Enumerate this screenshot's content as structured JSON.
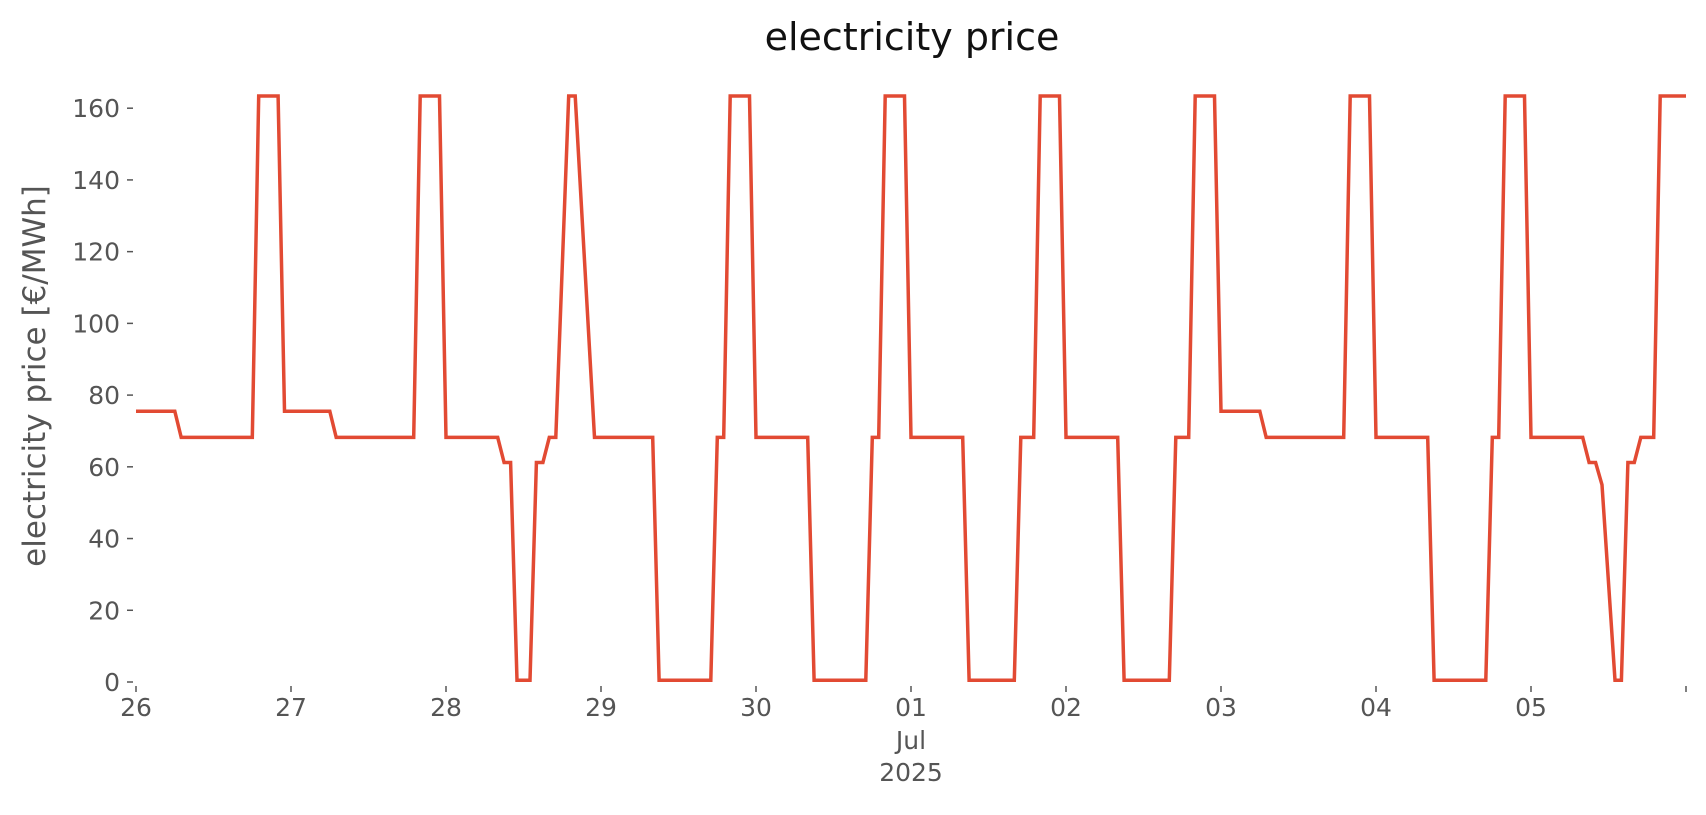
{
  "chart_data": {
    "type": "line",
    "title": "electricity price",
    "xlabel": "",
    "ylabel": "electricity price [€/MWh]",
    "grid": false,
    "legend": "none",
    "line_color": "#E24A33",
    "x_start": "2025-06-26T00:00",
    "x_end": "2025-07-06T00:00",
    "x_tick_labels": [
      "26",
      "27",
      "28",
      "29",
      "30",
      "01",
      "02",
      "03",
      "04",
      "05"
    ],
    "x_tick_sublabels": {
      "01": [
        "Jul",
        "2025"
      ]
    },
    "y_ticks": [
      0,
      20,
      40,
      60,
      80,
      100,
      120,
      140,
      160
    ],
    "ylim": [
      0,
      163.4
    ],
    "series": [
      {
        "name": "",
        "x": [
          "2025-06-26T00:00",
          "2025-06-26T06:00",
          "2025-06-26T07:00",
          "2025-06-26T18:00",
          "2025-06-26T19:00",
          "2025-06-26T22:00",
          "2025-06-26T23:00",
          "2025-06-27T06:00",
          "2025-06-27T07:00",
          "2025-06-27T19:00",
          "2025-06-27T20:00",
          "2025-06-27T23:00",
          "2025-06-28T00:00",
          "2025-06-28T08:00",
          "2025-06-28T09:00",
          "2025-06-28T10:00",
          "2025-06-28T11:00",
          "2025-06-28T13:00",
          "2025-06-28T14:00",
          "2025-06-28T15:00",
          "2025-06-28T16:00",
          "2025-06-28T17:00",
          "2025-06-28T19:00",
          "2025-06-28T20:00",
          "2025-06-28T23:00",
          "2025-06-29T00:00",
          "2025-06-29T08:00",
          "2025-06-29T09:00",
          "2025-06-29T17:00",
          "2025-06-29T18:00",
          "2025-06-29T19:00",
          "2025-06-29T20:00",
          "2025-06-29T23:00",
          "2025-06-30T00:00",
          "2025-06-30T08:00",
          "2025-06-30T09:00",
          "2025-06-30T17:00",
          "2025-06-30T18:00",
          "2025-06-30T19:00",
          "2025-06-30T20:00",
          "2025-06-30T23:00",
          "2025-07-01T00:00",
          "2025-07-01T08:00",
          "2025-07-01T09:00",
          "2025-07-01T16:00",
          "2025-07-01T17:00",
          "2025-07-01T19:00",
          "2025-07-01T20:00",
          "2025-07-01T23:00",
          "2025-07-02T00:00",
          "2025-07-02T08:00",
          "2025-07-02T09:00",
          "2025-07-02T16:00",
          "2025-07-02T17:00",
          "2025-07-02T19:00",
          "2025-07-02T20:00",
          "2025-07-02T23:00",
          "2025-07-03T00:00",
          "2025-07-03T06:00",
          "2025-07-03T07:00",
          "2025-07-03T19:00",
          "2025-07-03T20:00",
          "2025-07-03T23:00",
          "2025-07-04T00:00",
          "2025-07-04T08:00",
          "2025-07-04T09:00",
          "2025-07-04T17:00",
          "2025-07-04T18:00",
          "2025-07-04T19:00",
          "2025-07-04T20:00",
          "2025-07-04T23:00",
          "2025-07-05T00:00",
          "2025-07-05T08:00",
          "2025-07-05T09:00",
          "2025-07-05T10:00",
          "2025-07-05T11:00",
          "2025-07-05T13:00",
          "2025-07-05T14:00",
          "2025-07-05T15:00",
          "2025-07-05T16:00",
          "2025-07-05T17:00",
          "2025-07-05T19:00",
          "2025-07-05T20:00",
          "2025-07-06T00:00"
        ],
        "y": [
          75.5,
          75.5,
          68.2,
          68.2,
          163.4,
          163.4,
          75.5,
          75.5,
          68.2,
          68.2,
          163.4,
          163.4,
          68.2,
          68.2,
          61.2,
          61.2,
          0.5,
          0.5,
          61.2,
          61.2,
          68.2,
          68.2,
          163.4,
          163.4,
          68.2,
          68.2,
          68.2,
          0.5,
          0.5,
          68.2,
          68.2,
          163.4,
          163.4,
          68.2,
          68.2,
          0.5,
          0.5,
          68.2,
          68.2,
          163.4,
          163.4,
          68.2,
          68.2,
          0.5,
          0.5,
          68.2,
          68.2,
          163.4,
          163.4,
          68.2,
          68.2,
          0.5,
          0.5,
          68.2,
          68.2,
          163.4,
          163.4,
          75.5,
          75.5,
          68.2,
          68.2,
          163.4,
          163.4,
          68.2,
          68.2,
          0.5,
          0.5,
          68.2,
          68.2,
          163.4,
          163.4,
          68.2,
          68.2,
          61.2,
          61.2,
          55.0,
          0.5,
          0.5,
          61.2,
          61.2,
          68.2,
          68.2,
          163.4,
          163.4
        ]
      }
    ]
  }
}
